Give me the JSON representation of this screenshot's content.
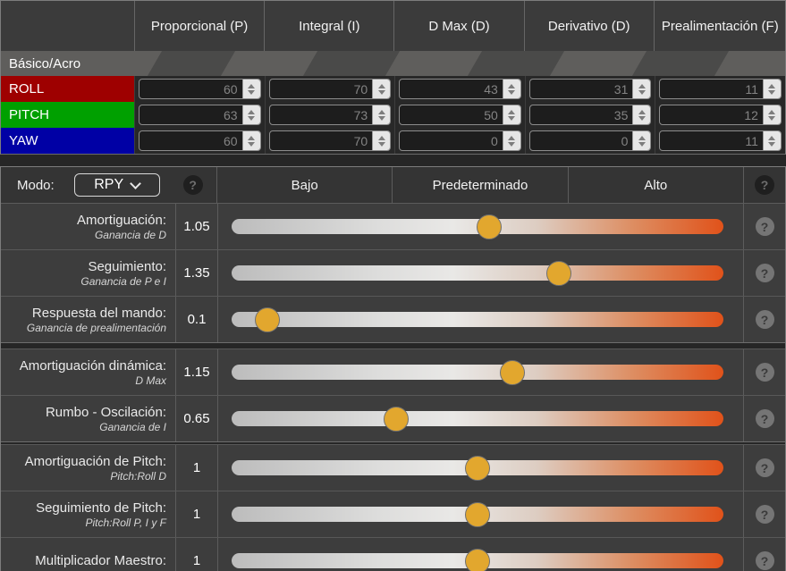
{
  "pid_table": {
    "section_label": "Básico/Acro",
    "columns": [
      "Proporcional (P)",
      "Integral (I)",
      "D Max (D)",
      "Derivativo (D)",
      "Prealimentación (F)"
    ],
    "rows": [
      {
        "axis": "ROLL",
        "color": "#9e0000",
        "values": [
          "60",
          "70",
          "43",
          "31",
          "11"
        ]
      },
      {
        "axis": "PITCH",
        "color": "#00a000",
        "values": [
          "63",
          "73",
          "50",
          "35",
          "12"
        ]
      },
      {
        "axis": "YAW",
        "color": "#0000a5",
        "values": [
          "60",
          "70",
          "0",
          "0",
          "11"
        ]
      }
    ]
  },
  "tuning": {
    "mode_label": "Modo:",
    "mode_value": "RPY",
    "help_glyph": "?",
    "column_headers": [
      "Bajo",
      "Predeterminado",
      "Alto"
    ],
    "sliders": [
      {
        "title": "Amortiguación:",
        "subtitle": "Ganancia de D",
        "value": "1.05",
        "percent": 52.5,
        "group_start": false
      },
      {
        "title": "Seguimiento:",
        "subtitle": "Ganancia de P e I",
        "value": "1.35",
        "percent": 67.5,
        "group_start": false
      },
      {
        "title": "Respuesta del mando:",
        "subtitle": "Ganancia de prealimentación",
        "value": "0.1",
        "percent": 5,
        "group_start": false
      },
      {
        "title": "Amortiguación dinámica:",
        "subtitle": "D Max",
        "value": "1.15",
        "percent": 57.5,
        "group_start": true
      },
      {
        "title": "Rumbo - Oscilación:",
        "subtitle": "Ganancia de I",
        "value": "0.65",
        "percent": 32.5,
        "group_start": false
      },
      {
        "title": "Amortiguación de Pitch:",
        "subtitle": "Pitch:Roll D",
        "value": "1",
        "percent": 50,
        "group_start": true
      },
      {
        "title": "Seguimiento de Pitch:",
        "subtitle": "Pitch:Roll P, I y F",
        "value": "1",
        "percent": 50,
        "group_start": false
      },
      {
        "title": "Multiplicador Maestro:",
        "subtitle": "",
        "value": "1",
        "percent": 50,
        "group_start": false
      }
    ]
  },
  "colors": {
    "slider_thumb": "#e2a72e",
    "slider_orange": "#e0521a",
    "roll": "#9e0000",
    "pitch": "#00a000",
    "yaw": "#0000a5"
  }
}
